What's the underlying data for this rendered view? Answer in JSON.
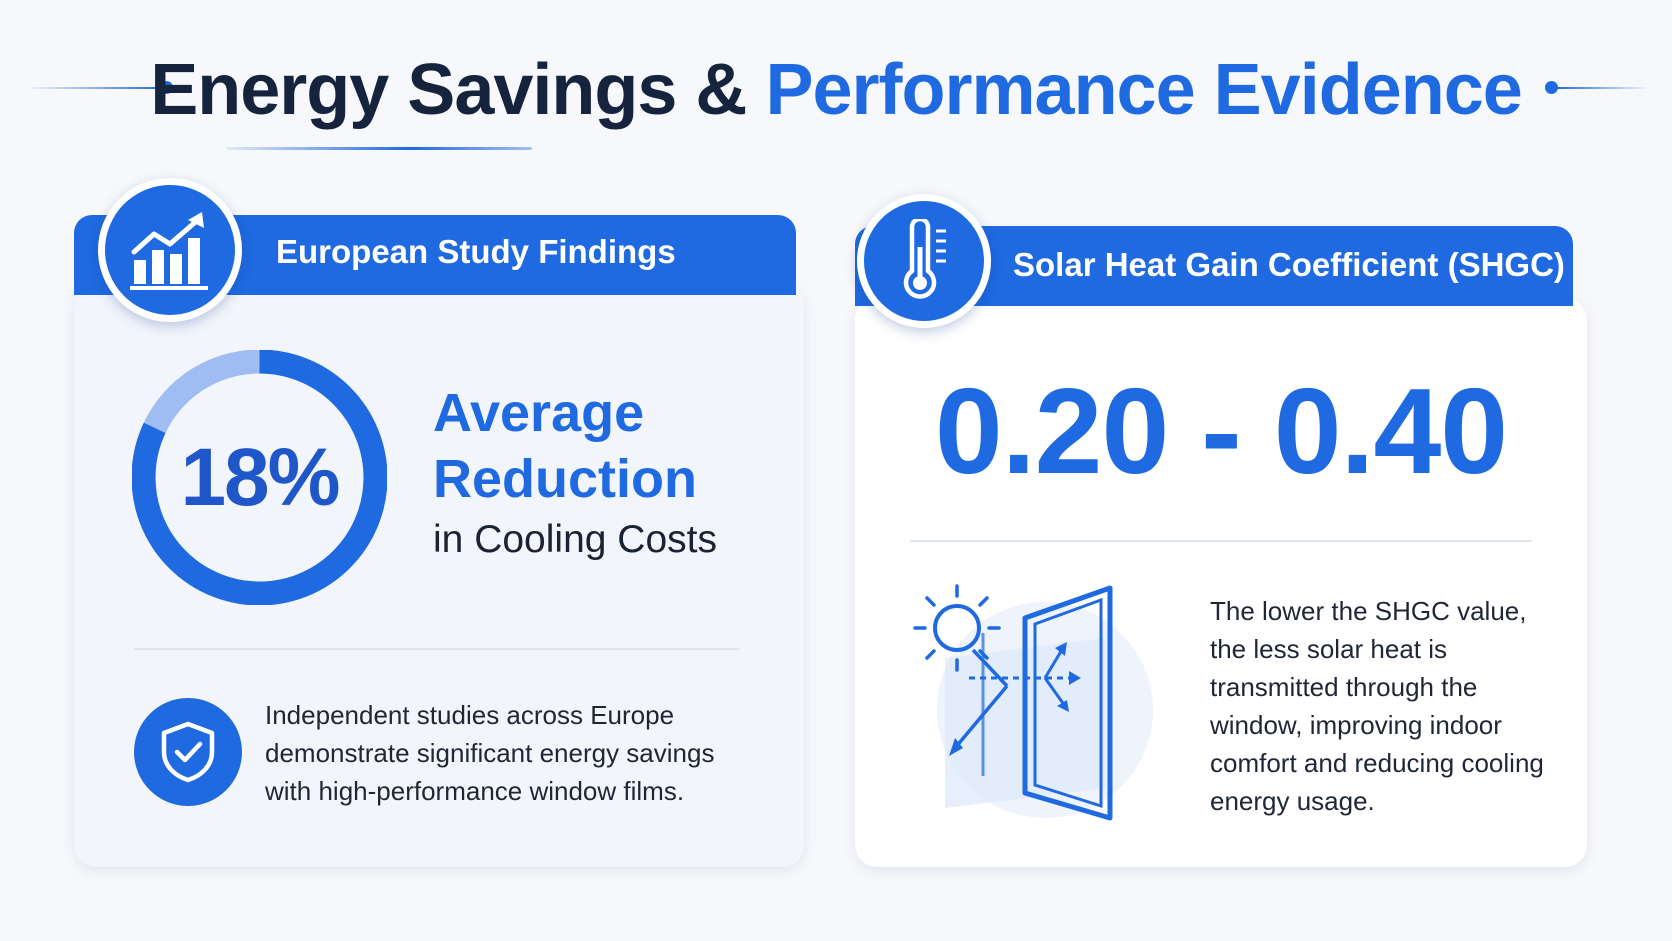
{
  "header": {
    "title_part1": "Energy Savings &",
    "title_part2": "Performance Evidence"
  },
  "left_card": {
    "banner_title": "European Study Findings",
    "badge_icon": "growth-chart-icon",
    "stat_value": "18%",
    "stat_fraction": 0.18,
    "stat_title_line1": "Average",
    "stat_title_line2": "Reduction",
    "stat_subtitle": "in Cooling Costs",
    "shield_icon": "shield-check-icon",
    "description": "Independent studies across Europe demonstrate significant energy savings with high-performance window films."
  },
  "right_card": {
    "banner_title": "Solar Heat Gain Coefficient (SHGC)",
    "badge_icon": "thermometer-icon",
    "range_value": "0.20 - 0.40",
    "illustration_icon": "sun-window-icon",
    "description": "The lower the SHGC value, the less solar heat is transmitted through the window, improving indoor comfort and reducing cooling energy usage."
  },
  "colors": {
    "primary": "#1f6ae0",
    "dark": "#15233d",
    "ring_light": "#9fbdf2"
  }
}
